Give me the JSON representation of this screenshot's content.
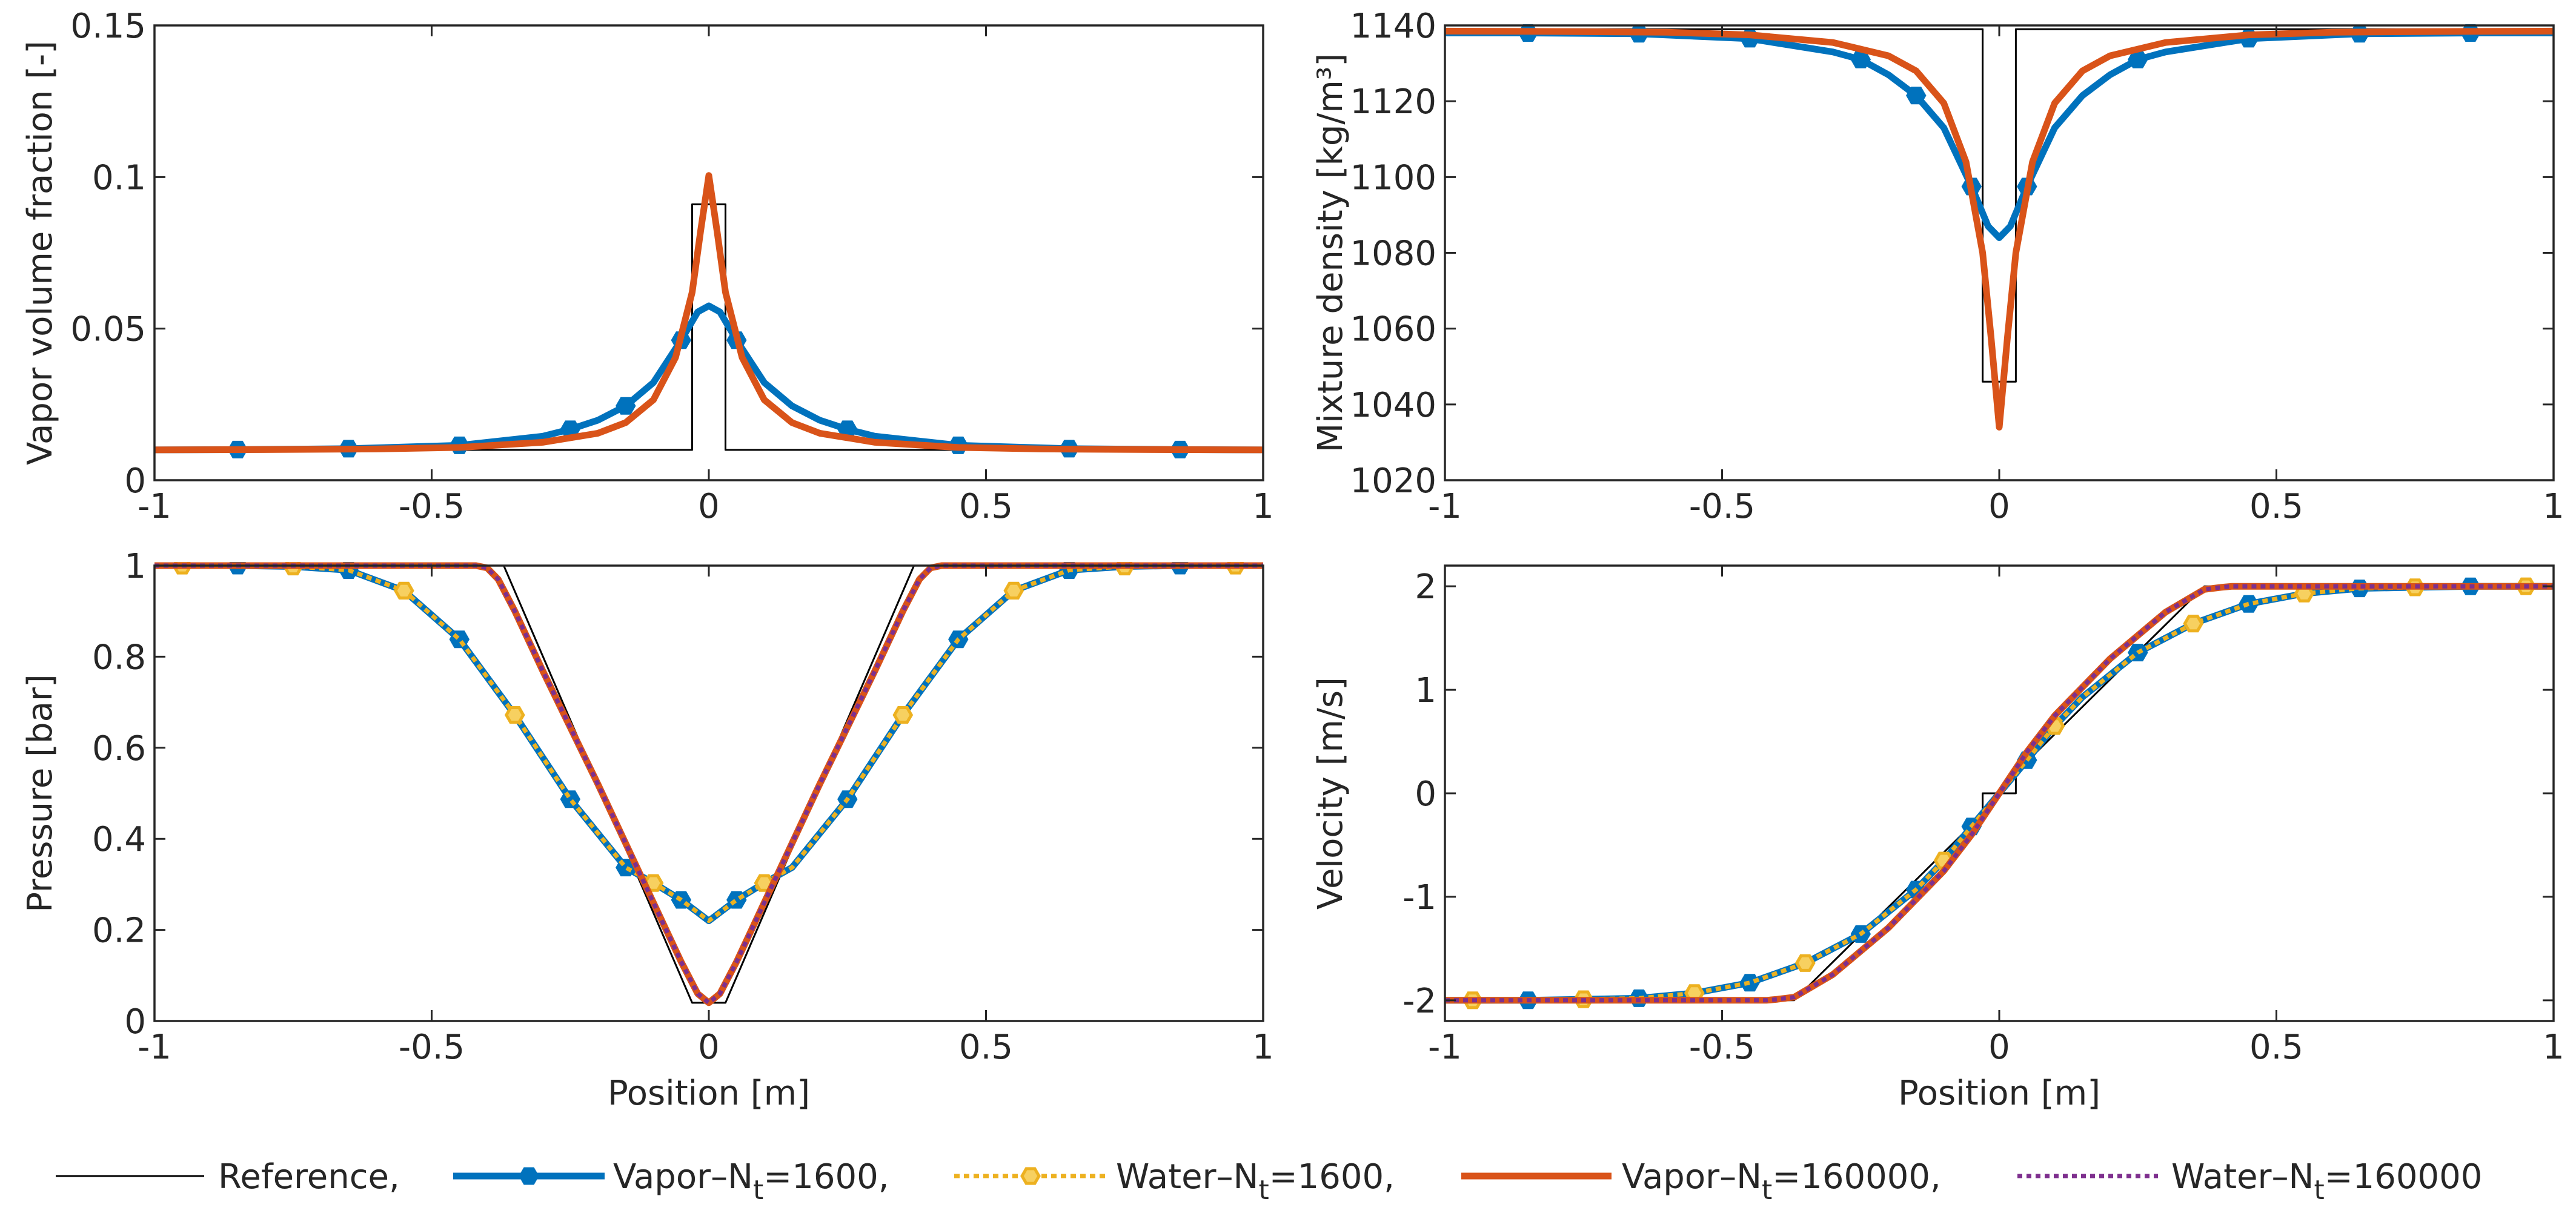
{
  "chart_data": [
    {
      "type": "line",
      "id": "vapor-fraction",
      "title": "",
      "xlabel": "",
      "ylabel": "Vapor volume fraction [-]",
      "xlim": [
        -1,
        1
      ],
      "ylim": [
        0,
        0.15
      ],
      "xticks": [
        -1,
        -0.5,
        0,
        0.5,
        1
      ],
      "xtick_labels": [
        "-1",
        "-0.5",
        "0",
        "0.5",
        "1"
      ],
      "yticks": [
        0,
        0.05,
        0.1,
        0.15
      ],
      "ytick_labels": [
        "0",
        "0.05",
        "0.1",
        "0.15"
      ],
      "series": [
        {
          "name": "Reference",
          "style": "reference",
          "x": [
            -1,
            -0.03,
            -0.03,
            0.03,
            0.03,
            1
          ],
          "y": [
            0.01,
            0.01,
            0.091,
            0.091,
            0.01,
            0.01
          ]
        },
        {
          "name": "Vapor-Nt=1600",
          "style": "vapor1600",
          "x": [
            -1,
            -0.85,
            -0.65,
            -0.45,
            -0.3,
            -0.25,
            -0.2,
            -0.15,
            -0.1,
            -0.05,
            -0.02,
            0,
            0.02,
            0.05,
            0.1,
            0.15,
            0.2,
            0.25,
            0.3,
            0.45,
            0.65,
            0.85,
            1
          ],
          "y": [
            0.01,
            0.0101,
            0.0104,
            0.0115,
            0.0145,
            0.0168,
            0.0198,
            0.0245,
            0.0322,
            0.0462,
            0.0555,
            0.0575,
            0.0555,
            0.0462,
            0.0322,
            0.0245,
            0.0198,
            0.0168,
            0.0145,
            0.0115,
            0.0104,
            0.0101,
            0.01
          ],
          "markers": [
            -0.85,
            -0.65,
            -0.45,
            -0.25,
            -0.15,
            -0.05,
            0.05,
            0.25,
            0.45,
            0.65,
            0.85
          ]
        },
        {
          "name": "Vapor-Nt=160000",
          "style": "vapor160000",
          "x": [
            -1,
            -0.8,
            -0.6,
            -0.45,
            -0.3,
            -0.2,
            -0.15,
            -0.1,
            -0.06,
            -0.03,
            -0.015,
            0,
            0.015,
            0.03,
            0.06,
            0.1,
            0.15,
            0.2,
            0.3,
            0.45,
            0.6,
            0.8,
            1
          ],
          "y": [
            0.01,
            0.0101,
            0.0103,
            0.0108,
            0.0125,
            0.0155,
            0.019,
            0.0265,
            0.0405,
            0.062,
            0.082,
            0.1005,
            0.082,
            0.062,
            0.0405,
            0.0265,
            0.019,
            0.0155,
            0.0125,
            0.0108,
            0.0103,
            0.0101,
            0.01
          ]
        }
      ]
    },
    {
      "type": "line",
      "id": "mixture-density",
      "title": "",
      "xlabel": "",
      "ylabel": "Mixture density [kg/m³]",
      "xlim": [
        -1,
        1
      ],
      "ylim": [
        1020,
        1140
      ],
      "xticks": [
        -1,
        -0.5,
        0,
        0.5,
        1
      ],
      "xtick_labels": [
        "-1",
        "-0.5",
        "0",
        "0.5",
        "1"
      ],
      "yticks": [
        1020,
        1040,
        1060,
        1080,
        1100,
        1120,
        1140
      ],
      "ytick_labels": [
        "1020",
        "1040",
        "1060",
        "1080",
        "1100",
        "1120",
        "1140"
      ],
      "series": [
        {
          "name": "Reference",
          "style": "reference",
          "x": [
            -1,
            -0.03,
            -0.03,
            0.03,
            0.03,
            1
          ],
          "y": [
            1139,
            1139,
            1046,
            1046,
            1139,
            1139
          ]
        },
        {
          "name": "Vapor-Nt=1600",
          "style": "vapor1600",
          "x": [
            -1,
            -0.85,
            -0.65,
            -0.45,
            -0.3,
            -0.25,
            -0.2,
            -0.15,
            -0.1,
            -0.05,
            -0.02,
            0,
            0.02,
            0.05,
            0.1,
            0.15,
            0.2,
            0.25,
            0.3,
            0.45,
            0.65,
            0.85,
            1
          ],
          "y": [
            1138,
            1138,
            1137.8,
            1136.5,
            1133,
            1131,
            1127,
            1121.5,
            1113,
            1097.5,
            1087,
            1084,
            1087,
            1097.5,
            1113,
            1121.5,
            1127,
            1131,
            1133,
            1136.5,
            1137.8,
            1138,
            1138
          ],
          "markers": [
            -0.85,
            -0.65,
            -0.45,
            -0.25,
            -0.15,
            -0.05,
            0.05,
            0.25,
            0.45,
            0.65,
            0.85
          ]
        },
        {
          "name": "Vapor-Nt=160000",
          "style": "vapor160000",
          "x": [
            -1,
            -0.8,
            -0.6,
            -0.45,
            -0.3,
            -0.2,
            -0.15,
            -0.1,
            -0.06,
            -0.03,
            -0.015,
            0,
            0.015,
            0.03,
            0.06,
            0.1,
            0.15,
            0.2,
            0.3,
            0.45,
            0.6,
            0.8,
            1
          ],
          "y": [
            1138.5,
            1138.4,
            1138.2,
            1137.5,
            1135.5,
            1132,
            1128,
            1119.5,
            1104,
            1080,
            1058,
            1034,
            1058,
            1080,
            1104,
            1119.5,
            1128,
            1132,
            1135.5,
            1137.5,
            1138.2,
            1138.4,
            1138.5
          ]
        }
      ]
    },
    {
      "type": "line",
      "id": "pressure",
      "title": "",
      "xlabel": "Position [m]",
      "ylabel": "Pressure [bar]",
      "xlim": [
        -1,
        1
      ],
      "ylim": [
        0,
        1
      ],
      "xticks": [
        -1,
        -0.5,
        0,
        0.5,
        1
      ],
      "xtick_labels": [
        "-1",
        "-0.5",
        "0",
        "0.5",
        "1"
      ],
      "yticks": [
        0,
        0.2,
        0.4,
        0.6,
        0.8,
        1
      ],
      "ytick_labels": [
        "0",
        "0.2",
        "0.4",
        "0.6",
        "0.8",
        "1"
      ],
      "series": [
        {
          "name": "Reference",
          "style": "reference",
          "x": [
            -1,
            -0.37,
            -0.03,
            0.03,
            0.37,
            1
          ],
          "y": [
            1,
            1,
            0.04,
            0.04,
            1,
            1
          ]
        },
        {
          "name": "Vapor-Nt=1600",
          "style": "vapor1600",
          "x": [
            -1,
            -0.85,
            -0.75,
            -0.65,
            -0.55,
            -0.45,
            -0.35,
            -0.25,
            -0.15,
            -0.1,
            -0.05,
            0,
            0.05,
            0.1,
            0.15,
            0.25,
            0.35,
            0.45,
            0.55,
            0.65,
            0.75,
            0.85,
            1
          ],
          "y": [
            1,
            1,
            0.998,
            0.99,
            0.945,
            0.838,
            0.672,
            0.487,
            0.337,
            0.303,
            0.266,
            0.22,
            0.266,
            0.303,
            0.337,
            0.487,
            0.672,
            0.838,
            0.945,
            0.99,
            0.998,
            1,
            1
          ],
          "markers": [
            -0.85,
            -0.65,
            -0.45,
            -0.25,
            -0.15,
            -0.05,
            0.05,
            0.25,
            0.45,
            0.65,
            0.85
          ]
        },
        {
          "name": "Water-Nt=1600",
          "style": "water1600",
          "x": [
            -1,
            -0.85,
            -0.75,
            -0.65,
            -0.55,
            -0.45,
            -0.35,
            -0.25,
            -0.15,
            -0.1,
            -0.05,
            0,
            0.05,
            0.1,
            0.15,
            0.25,
            0.35,
            0.45,
            0.55,
            0.65,
            0.75,
            0.85,
            1
          ],
          "y": [
            1,
            1,
            0.998,
            0.99,
            0.945,
            0.838,
            0.672,
            0.487,
            0.337,
            0.303,
            0.266,
            0.22,
            0.266,
            0.303,
            0.337,
            0.487,
            0.672,
            0.838,
            0.945,
            0.99,
            0.998,
            1,
            1
          ],
          "markers": [
            -0.95,
            -0.75,
            -0.55,
            -0.35,
            -0.1,
            0.1,
            0.35,
            0.55,
            0.75,
            0.95
          ]
        },
        {
          "name": "Vapor-Nt=160000",
          "style": "vapor160000",
          "x": [
            -1,
            -0.42,
            -0.4,
            -0.38,
            -0.35,
            -0.3,
            -0.2,
            -0.1,
            -0.05,
            -0.02,
            0,
            0.02,
            0.05,
            0.1,
            0.2,
            0.3,
            0.35,
            0.38,
            0.4,
            0.42,
            1
          ],
          "y": [
            1,
            1,
            0.995,
            0.97,
            0.9,
            0.77,
            0.52,
            0.26,
            0.13,
            0.06,
            0.04,
            0.06,
            0.13,
            0.26,
            0.52,
            0.77,
            0.9,
            0.97,
            0.995,
            1,
            1
          ]
        },
        {
          "name": "Water-Nt=160000",
          "style": "water160000",
          "x": [
            -1,
            -0.42,
            -0.4,
            -0.38,
            -0.35,
            -0.3,
            -0.2,
            -0.1,
            -0.05,
            -0.02,
            0,
            0.02,
            0.05,
            0.1,
            0.2,
            0.3,
            0.35,
            0.38,
            0.4,
            0.42,
            1
          ],
          "y": [
            1,
            1,
            0.995,
            0.97,
            0.9,
            0.77,
            0.52,
            0.26,
            0.13,
            0.06,
            0.04,
            0.06,
            0.13,
            0.26,
            0.52,
            0.77,
            0.9,
            0.97,
            0.995,
            1,
            1
          ]
        }
      ]
    },
    {
      "type": "line",
      "id": "velocity",
      "title": "",
      "xlabel": "Position [m]",
      "ylabel": "Velocity [m/s]",
      "xlim": [
        -1,
        1
      ],
      "ylim": [
        -2.2,
        2.2
      ],
      "xticks": [
        -1,
        -0.5,
        0,
        0.5,
        1
      ],
      "xtick_labels": [
        "-1",
        "-0.5",
        "0",
        "0.5",
        "1"
      ],
      "yticks": [
        -2,
        -1,
        0,
        1,
        2
      ],
      "ytick_labels": [
        "-2",
        "-1",
        "0",
        "1",
        "2"
      ],
      "series": [
        {
          "name": "Reference",
          "style": "reference",
          "x": [
            -1,
            -0.37,
            -0.03,
            -0.03,
            0.03,
            0.03,
            0.37,
            1
          ],
          "y": [
            -2,
            -2,
            -0.2,
            0,
            0,
            0.2,
            2,
            2
          ]
        },
        {
          "name": "Vapor-Nt=1600",
          "style": "vapor1600",
          "x": [
            -1,
            -0.85,
            -0.75,
            -0.65,
            -0.55,
            -0.45,
            -0.35,
            -0.25,
            -0.15,
            -0.1,
            -0.05,
            0,
            0.05,
            0.1,
            0.15,
            0.25,
            0.35,
            0.45,
            0.55,
            0.65,
            0.75,
            0.85,
            1
          ],
          "y": [
            -2,
            -2,
            -1.99,
            -1.98,
            -1.93,
            -1.83,
            -1.64,
            -1.36,
            -0.93,
            -0.65,
            -0.32,
            0,
            0.32,
            0.65,
            0.93,
            1.36,
            1.64,
            1.83,
            1.93,
            1.98,
            1.99,
            2,
            2
          ],
          "markers": [
            -0.85,
            -0.65,
            -0.45,
            -0.25,
            -0.15,
            -0.05,
            0.05,
            0.25,
            0.45,
            0.65,
            0.85
          ]
        },
        {
          "name": "Water-Nt=1600",
          "style": "water1600",
          "x": [
            -1,
            -0.85,
            -0.75,
            -0.65,
            -0.55,
            -0.45,
            -0.35,
            -0.25,
            -0.15,
            -0.1,
            -0.05,
            0,
            0.05,
            0.1,
            0.15,
            0.25,
            0.35,
            0.45,
            0.55,
            0.65,
            0.75,
            0.85,
            1
          ],
          "y": [
            -2,
            -2,
            -1.99,
            -1.98,
            -1.93,
            -1.83,
            -1.64,
            -1.36,
            -0.93,
            -0.65,
            -0.32,
            0,
            0.32,
            0.65,
            0.93,
            1.36,
            1.64,
            1.83,
            1.93,
            1.98,
            1.99,
            2,
            2
          ],
          "markers": [
            -0.95,
            -0.75,
            -0.55,
            -0.35,
            -0.1,
            0.1,
            0.35,
            0.55,
            0.75,
            0.95
          ]
        },
        {
          "name": "Vapor-Nt=160000",
          "style": "vapor160000",
          "x": [
            -1,
            -0.42,
            -0.4,
            -0.37,
            -0.3,
            -0.2,
            -0.1,
            -0.05,
            0,
            0.05,
            0.1,
            0.2,
            0.3,
            0.37,
            0.4,
            0.42,
            1
          ],
          "y": [
            -2,
            -2,
            -1.99,
            -1.97,
            -1.75,
            -1.3,
            -0.75,
            -0.4,
            0,
            0.4,
            0.75,
            1.3,
            1.75,
            1.97,
            1.99,
            2,
            2
          ]
        },
        {
          "name": "Water-Nt=160000",
          "style": "water160000",
          "x": [
            -1,
            -0.42,
            -0.4,
            -0.37,
            -0.3,
            -0.2,
            -0.1,
            -0.05,
            0,
            0.05,
            0.1,
            0.2,
            0.3,
            0.37,
            0.4,
            0.42,
            1
          ],
          "y": [
            -2,
            -2,
            -1.99,
            -1.97,
            -1.75,
            -1.3,
            -0.75,
            -0.4,
            0,
            0.4,
            0.75,
            1.3,
            1.75,
            1.97,
            1.99,
            2,
            2
          ]
        }
      ]
    }
  ],
  "legend": {
    "position": "bottom",
    "entries": [
      {
        "style": "reference",
        "label": "Reference,",
        "sub": "",
        "suffix": ""
      },
      {
        "style": "vapor1600",
        "label": "Vapor–N",
        "sub": "t",
        "suffix": "=1600,"
      },
      {
        "style": "water1600",
        "label": "Water–N",
        "sub": "t",
        "suffix": "=1600,"
      },
      {
        "style": "vapor160000",
        "label": "Vapor–N",
        "sub": "t",
        "suffix": "=160000,"
      },
      {
        "style": "water160000",
        "label": "Water–N",
        "sub": "t",
        "suffix": "=160000"
      }
    ]
  },
  "colors": {
    "reference": "#000000",
    "vapor1600": "#0072BD",
    "water1600": "#EDB120",
    "vapor160000": "#D95319",
    "water160000": "#7E2F8E",
    "axis": "#262626"
  }
}
